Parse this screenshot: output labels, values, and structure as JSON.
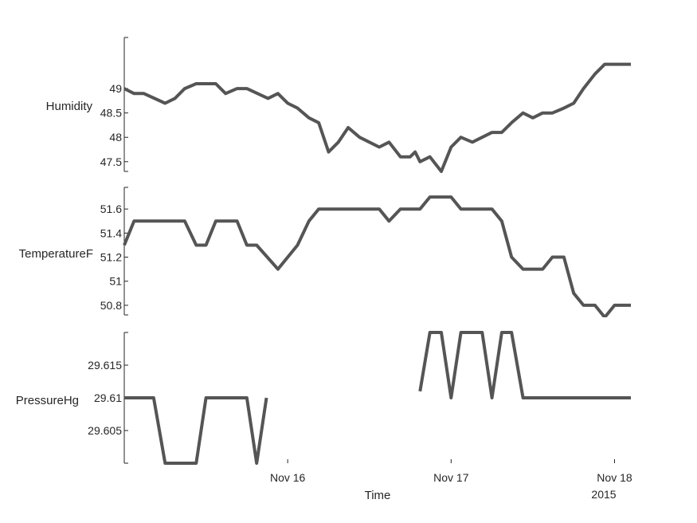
{
  "chart_data": {
    "type": "line",
    "title": "",
    "xlabel": "Time",
    "x_tick_labels": [
      "Nov 16",
      "Nov 17",
      "Nov 18"
    ],
    "x_tick_days": [
      16,
      17,
      18
    ],
    "x_secondary_label": "2015",
    "xlim_days": [
      15,
      18.1
    ],
    "line_color": "#555555",
    "grid": false,
    "legend": "none",
    "panels": [
      {
        "ylabel": "Humidity",
        "ylim": [
          47.3,
          50.05
        ],
        "y_ticks": [
          47.5,
          48,
          48.5,
          49
        ],
        "y_tick_labels": [
          "47.5",
          "48",
          "48.5",
          "49"
        ],
        "segments": [
          {
            "x_days": [
              15.0,
              15.06,
              15.12,
              15.25,
              15.31,
              15.37,
              15.44,
              15.56,
              15.62,
              15.69,
              15.75,
              15.88,
              15.94,
              16.0,
              16.06,
              16.13,
              16.19,
              16.25,
              16.31,
              16.37,
              16.44,
              16.5,
              16.56,
              16.62,
              16.69,
              16.75,
              16.78,
              16.81,
              16.87,
              16.94,
              17.0,
              17.06,
              17.13,
              17.19,
              17.25,
              17.31,
              17.37,
              17.44,
              17.5,
              17.56,
              17.62,
              17.69,
              17.75,
              17.81,
              17.88,
              17.94,
              18.02,
              18.1
            ],
            "values": [
              49.0,
              48.9,
              48.9,
              48.7,
              48.8,
              49.0,
              49.1,
              49.1,
              48.9,
              49.0,
              49.0,
              48.8,
              48.9,
              48.7,
              48.6,
              48.4,
              48.3,
              47.7,
              47.9,
              48.2,
              48.0,
              47.9,
              47.8,
              47.9,
              47.6,
              47.6,
              47.7,
              47.5,
              47.6,
              47.3,
              47.8,
              48.0,
              47.9,
              48.0,
              48.1,
              48.1,
              48.3,
              48.5,
              48.4,
              48.5,
              48.5,
              48.6,
              48.7,
              49.0,
              49.3,
              49.5,
              49.5,
              49.5
            ]
          }
        ]
      },
      {
        "ylabel": "TemperatureF",
        "ylim": [
          50.72,
          51.78
        ],
        "y_ticks": [
          50.8,
          51,
          51.2,
          51.4,
          51.6
        ],
        "y_tick_labels": [
          "50.8",
          "51",
          "51.2",
          "51.4",
          "51.6"
        ],
        "segments": [
          {
            "x_days": [
              15.0,
              15.06,
              15.12,
              15.37,
              15.44,
              15.5,
              15.56,
              15.69,
              15.75,
              15.81,
              15.94,
              16.06,
              16.13,
              16.19,
              16.31,
              16.56,
              16.62,
              16.69,
              16.81,
              16.87,
              16.94,
              17.0,
              17.06,
              17.13,
              17.25,
              17.31,
              17.37,
              17.44,
              17.56,
              17.62,
              17.69,
              17.75,
              17.81,
              17.88,
              17.94,
              18.0,
              18.1
            ],
            "values": [
              51.3,
              51.5,
              51.5,
              51.5,
              51.3,
              51.3,
              51.5,
              51.5,
              51.3,
              51.3,
              51.1,
              51.3,
              51.5,
              51.6,
              51.6,
              51.6,
              51.5,
              51.6,
              51.6,
              51.7,
              51.7,
              51.7,
              51.6,
              51.6,
              51.6,
              51.5,
              51.2,
              51.1,
              51.1,
              51.2,
              51.2,
              50.9,
              50.8,
              50.8,
              50.7,
              50.8,
              50.8
            ]
          }
        ]
      },
      {
        "ylabel": "PressureHg",
        "ylim": [
          29.6,
          29.62
        ],
        "y_ticks": [
          29.605,
          29.61,
          29.615
        ],
        "y_tick_labels": [
          "29.605",
          "29.61",
          "29.615"
        ],
        "segments": [
          {
            "x_days": [
              15.0,
              15.18,
              15.25,
              15.44,
              15.5,
              15.75,
              15.81,
              15.87
            ],
            "values": [
              29.61,
              29.61,
              29.6,
              29.6,
              29.61,
              29.61,
              29.6,
              29.61
            ]
          },
          {
            "x_days": [
              16.81,
              16.87,
              16.94,
              17.0,
              17.06,
              17.19,
              17.25,
              17.31,
              17.37,
              17.44,
              18.1
            ],
            "values": [
              29.611,
              29.62,
              29.62,
              29.61,
              29.62,
              29.62,
              29.61,
              29.62,
              29.62,
              29.61,
              29.61
            ]
          }
        ]
      }
    ]
  }
}
